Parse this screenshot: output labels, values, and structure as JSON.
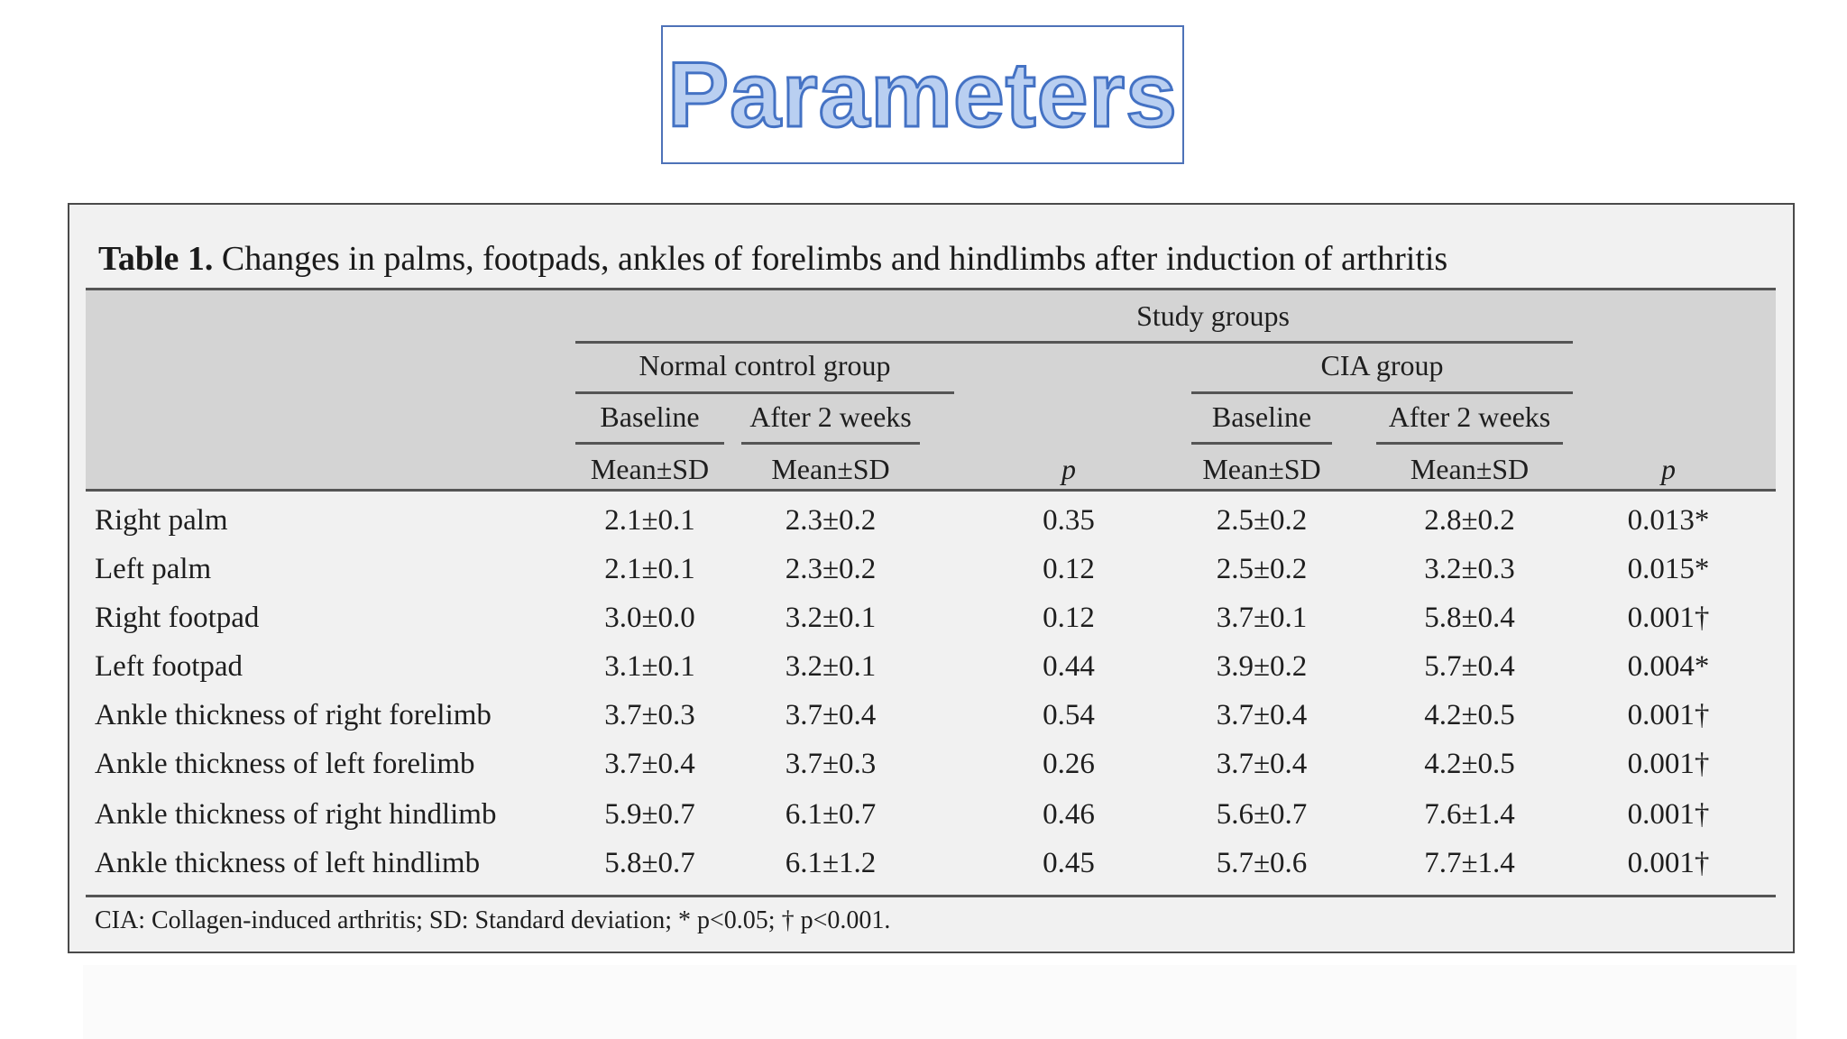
{
  "slide": {
    "title": "Parameters"
  },
  "table": {
    "caption_label": "Table 1.",
    "caption_text": "Changes in palms, footpads, ankles of forelimbs and hindlimbs after induction of arthritis",
    "header": {
      "study_groups": "Study groups",
      "normal_group": "Normal control group",
      "cia_group": "CIA group",
      "baseline": "Baseline",
      "after_2_weeks": "After 2 weeks",
      "mean_sd": "Mean±SD",
      "p": "p"
    },
    "rows": [
      {
        "label": "Right palm",
        "n_base": "2.1±0.1",
        "n_after": "2.3±0.2",
        "n_p": "0.35",
        "c_base": "2.5±0.2",
        "c_after": "2.8±0.2",
        "c_p": "0.013*"
      },
      {
        "label": "Left palm",
        "n_base": "2.1±0.1",
        "n_after": "2.3±0.2",
        "n_p": "0.12",
        "c_base": "2.5±0.2",
        "c_after": "3.2±0.3",
        "c_p": "0.015*"
      },
      {
        "label": "Right footpad",
        "n_base": "3.0±0.0",
        "n_after": "3.2±0.1",
        "n_p": "0.12",
        "c_base": "3.7±0.1",
        "c_after": "5.8±0.4",
        "c_p": "0.001†"
      },
      {
        "label": "Left footpad",
        "n_base": "3.1±0.1",
        "n_after": "3.2±0.1",
        "n_p": "0.44",
        "c_base": "3.9±0.2",
        "c_after": "5.7±0.4",
        "c_p": "0.004*"
      },
      {
        "label": "Ankle thickness of right forelimb",
        "n_base": "3.7±0.3",
        "n_after": "3.7±0.4",
        "n_p": "0.54",
        "c_base": "3.7±0.4",
        "c_after": "4.2±0.5",
        "c_p": "0.001†"
      },
      {
        "label": "Ankle thickness of left forelimb",
        "n_base": "3.7±0.4",
        "n_after": "3.7±0.3",
        "n_p": "0.26",
        "c_base": "3.7±0.4",
        "c_after": "4.2±0.5",
        "c_p": "0.001†"
      },
      {
        "label": "Ankle thickness of right hindlimb",
        "n_base": "5.9±0.7",
        "n_after": "6.1±0.7",
        "n_p": "0.46",
        "c_base": "5.6±0.7",
        "c_after": "7.6±1.4",
        "c_p": "0.001†"
      },
      {
        "label": "Ankle thickness of left hindlimb",
        "n_base": "5.8±0.7",
        "n_after": "6.1±1.2",
        "n_p": "0.45",
        "c_base": "5.7±0.6",
        "c_after": "7.7±1.4",
        "c_p": "0.001†"
      }
    ],
    "footnote": "CIA: Collagen-induced arthritis; SD: Standard deviation; * p<0.05; † p<0.001."
  }
}
